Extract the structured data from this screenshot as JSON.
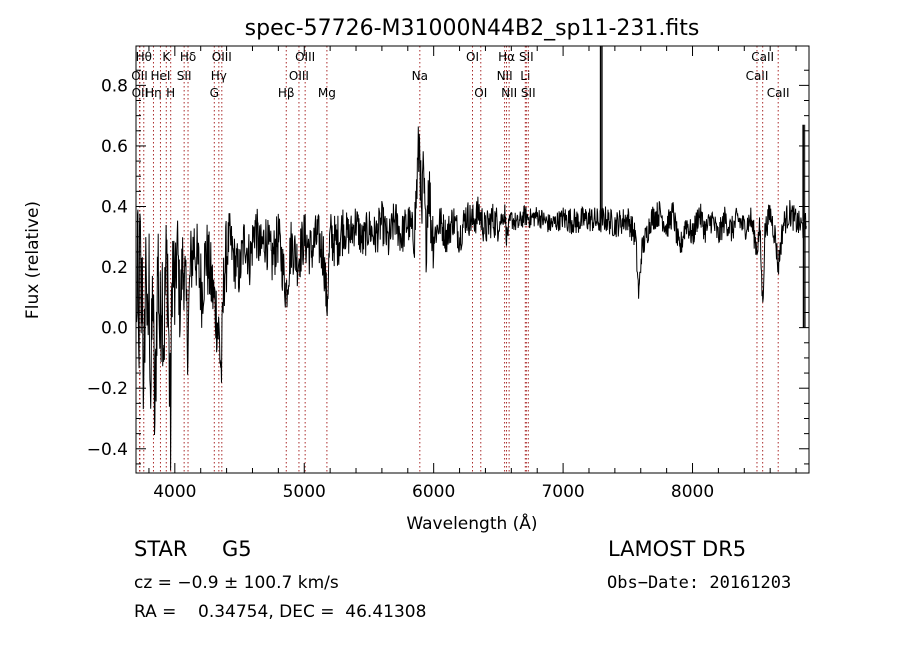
{
  "chart_data": {
    "type": "line",
    "title": "spec-57726-M31000N44B2_sp11-231.fits",
    "xlabel": "Wavelength (Å)",
    "ylabel": "Flux (relative)",
    "xlim": [
      3700,
      8900
    ],
    "ylim": [
      -0.48,
      0.93
    ],
    "x_ticks": [
      4000,
      5000,
      6000,
      7000,
      8000
    ],
    "x_tick_labels": [
      "4000",
      "5000",
      "6000",
      "7000",
      "8000"
    ],
    "y_ticks": [
      -0.4,
      -0.2,
      0.0,
      0.2,
      0.4,
      0.6,
      0.8
    ],
    "y_tick_labels": [
      "−0.4",
      "−0.2",
      "0.0",
      "0.2",
      "0.4",
      "0.6",
      "0.8"
    ],
    "grid": false,
    "line_color": "#000000",
    "marker_color": "#aa2a2a",
    "spectrum_anchors": [
      [
        3705,
        -0.05
      ],
      [
        3712,
        0.35
      ],
      [
        3720,
        -0.2
      ],
      [
        3730,
        0.3
      ],
      [
        3740,
        0.05
      ],
      [
        3750,
        0.2
      ],
      [
        3760,
        -0.35
      ],
      [
        3770,
        0.1
      ],
      [
        3780,
        0.28
      ],
      [
        3790,
        -0.15
      ],
      [
        3800,
        0.2
      ],
      [
        3815,
        -0.25
      ],
      [
        3830,
        0.15
      ],
      [
        3845,
        -0.35
      ],
      [
        3860,
        0.05
      ],
      [
        3870,
        0.25
      ],
      [
        3885,
        -0.05
      ],
      [
        3900,
        0.2
      ],
      [
        3915,
        -0.05
      ],
      [
        3930,
        0.18
      ],
      [
        3945,
        0.22
      ],
      [
        3955,
        -0.12
      ],
      [
        3968,
        -0.35
      ],
      [
        3980,
        0.25
      ],
      [
        4000,
        0.1
      ],
      [
        4020,
        0.28
      ],
      [
        4040,
        0.05
      ],
      [
        4060,
        0.22
      ],
      [
        4080,
        0.15
      ],
      [
        4101,
        -0.05
      ],
      [
        4120,
        0.2
      ],
      [
        4150,
        0.28
      ],
      [
        4180,
        0.2
      ],
      [
        4210,
        0.12
      ],
      [
        4240,
        0.25
      ],
      [
        4270,
        0.18
      ],
      [
        4300,
        0.1
      ],
      [
        4320,
        0.05
      ],
      [
        4340,
        -0.02
      ],
      [
        4360,
        -0.15
      ],
      [
        4380,
        0.18
      ],
      [
        4420,
        0.3
      ],
      [
        4460,
        0.22
      ],
      [
        4500,
        0.18
      ],
      [
        4540,
        0.3
      ],
      [
        4580,
        0.22
      ],
      [
        4620,
        0.34
      ],
      [
        4660,
        0.25
      ],
      [
        4700,
        0.3
      ],
      [
        4750,
        0.22
      ],
      [
        4800,
        0.3
      ],
      [
        4861,
        0.12
      ],
      [
        4900,
        0.28
      ],
      [
        4950,
        0.22
      ],
      [
        5000,
        0.3
      ],
      [
        5050,
        0.25
      ],
      [
        5100,
        0.3
      ],
      [
        5150,
        0.24
      ],
      [
        5175,
        0.07
      ],
      [
        5200,
        0.3
      ],
      [
        5250,
        0.28
      ],
      [
        5300,
        0.33
      ],
      [
        5350,
        0.3
      ],
      [
        5400,
        0.35
      ],
      [
        5450,
        0.28
      ],
      [
        5500,
        0.33
      ],
      [
        5550,
        0.3
      ],
      [
        5600,
        0.35
      ],
      [
        5650,
        0.28
      ],
      [
        5700,
        0.36
      ],
      [
        5750,
        0.3
      ],
      [
        5800,
        0.35
      ],
      [
        5850,
        0.3
      ],
      [
        5880,
        0.55
      ],
      [
        5893,
        0.65
      ],
      [
        5905,
        0.3
      ],
      [
        5920,
        0.5
      ],
      [
        5940,
        0.28
      ],
      [
        5960,
        0.5
      ],
      [
        5980,
        0.35
      ],
      [
        6000,
        0.3
      ],
      [
        6050,
        0.35
      ],
      [
        6100,
        0.3
      ],
      [
        6150,
        0.36
      ],
      [
        6200,
        0.3
      ],
      [
        6250,
        0.37
      ],
      [
        6300,
        0.35
      ],
      [
        6350,
        0.38
      ],
      [
        6400,
        0.32
      ],
      [
        6450,
        0.36
      ],
      [
        6500,
        0.34
      ],
      [
        6550,
        0.38
      ],
      [
        6563,
        0.3
      ],
      [
        6600,
        0.36
      ],
      [
        6650,
        0.34
      ],
      [
        6700,
        0.37
      ],
      [
        6750,
        0.36
      ],
      [
        6800,
        0.37
      ],
      [
        6900,
        0.34
      ],
      [
        7000,
        0.36
      ],
      [
        7100,
        0.35
      ],
      [
        7200,
        0.36
      ],
      [
        7280,
        0.35
      ],
      [
        7320,
        0.36
      ],
      [
        7400,
        0.34
      ],
      [
        7500,
        0.36
      ],
      [
        7560,
        0.3
      ],
      [
        7585,
        0.1
      ],
      [
        7605,
        0.25
      ],
      [
        7640,
        0.3
      ],
      [
        7680,
        0.36
      ],
      [
        7750,
        0.38
      ],
      [
        7800,
        0.33
      ],
      [
        7850,
        0.38
      ],
      [
        7900,
        0.25
      ],
      [
        7950,
        0.35
      ],
      [
        8000,
        0.3
      ],
      [
        8050,
        0.38
      ],
      [
        8100,
        0.32
      ],
      [
        8150,
        0.36
      ],
      [
        8200,
        0.3
      ],
      [
        8250,
        0.36
      ],
      [
        8300,
        0.32
      ],
      [
        8350,
        0.36
      ],
      [
        8400,
        0.33
      ],
      [
        8450,
        0.36
      ],
      [
        8498,
        0.26
      ],
      [
        8520,
        0.33
      ],
      [
        8542,
        0.07
      ],
      [
        8560,
        0.32
      ],
      [
        8600,
        0.38
      ],
      [
        8640,
        0.3
      ],
      [
        8662,
        0.2
      ],
      [
        8700,
        0.34
      ],
      [
        8750,
        0.38
      ],
      [
        8800,
        0.35
      ],
      [
        8850,
        0.33
      ],
      [
        8880,
        0.34
      ]
    ],
    "spikes": [
      {
        "x": 7290,
        "y": 0.93,
        "base": 0.36
      },
      {
        "x": 8855,
        "y": 0.67,
        "base": 0.35
      },
      {
        "x": 8858,
        "y": 0.0,
        "base": 0.35
      }
    ],
    "line_markers": [
      {
        "x": 3727,
        "label": "OII",
        "row": 1
      },
      {
        "x": 3730,
        "label": "OII",
        "row": 2
      },
      {
        "x": 3760,
        "label": "Hθ",
        "row": 0
      },
      {
        "x": 3835,
        "label": "Hη",
        "row": 2
      },
      {
        "x": 3889,
        "label": "HeI",
        "row": 1
      },
      {
        "x": 3934,
        "label": "K",
        "row": 0
      },
      {
        "x": 3968,
        "label": "H",
        "row": 2
      },
      {
        "x": 4072,
        "label": "SII",
        "row": 1
      },
      {
        "x": 4102,
        "label": "Hδ",
        "row": 0
      },
      {
        "x": 4305,
        "label": "G",
        "row": 2
      },
      {
        "x": 4340,
        "label": "Hγ",
        "row": 1
      },
      {
        "x": 4363,
        "label": "OIII",
        "row": 0
      },
      {
        "x": 4861,
        "label": "Hβ",
        "row": 2
      },
      {
        "x": 4959,
        "label": "OIII",
        "row": 1
      },
      {
        "x": 5007,
        "label": "OIII",
        "row": 0
      },
      {
        "x": 5175,
        "label": "Mg",
        "row": 2
      },
      {
        "x": 5893,
        "label": "Na",
        "row": 1
      },
      {
        "x": 6300,
        "label": "OI",
        "row": 0
      },
      {
        "x": 6364,
        "label": "OI",
        "row": 2
      },
      {
        "x": 6548,
        "label": "NII",
        "row": 1
      },
      {
        "x": 6563,
        "label": "Hα",
        "row": 0
      },
      {
        "x": 6583,
        "label": "NII",
        "row": 2
      },
      {
        "x": 6708,
        "label": "Li",
        "row": 1
      },
      {
        "x": 6716,
        "label": "SII",
        "row": 0
      },
      {
        "x": 6731,
        "label": "SII",
        "row": 2
      },
      {
        "x": 8498,
        "label": "CaII",
        "row": 1
      },
      {
        "x": 8542,
        "label": "CaII",
        "row": 0
      },
      {
        "x": 8662,
        "label": "CaII",
        "row": 2
      }
    ]
  },
  "info": {
    "object_class": "STAR",
    "subclass": "G5",
    "survey": "LAMOST DR5",
    "cz": "cz = −0.9 ± 100.7 km/s",
    "obs_date": "Obs−Date: 20161203",
    "radec": "RA =    0.34754, DEC =  46.41308"
  }
}
